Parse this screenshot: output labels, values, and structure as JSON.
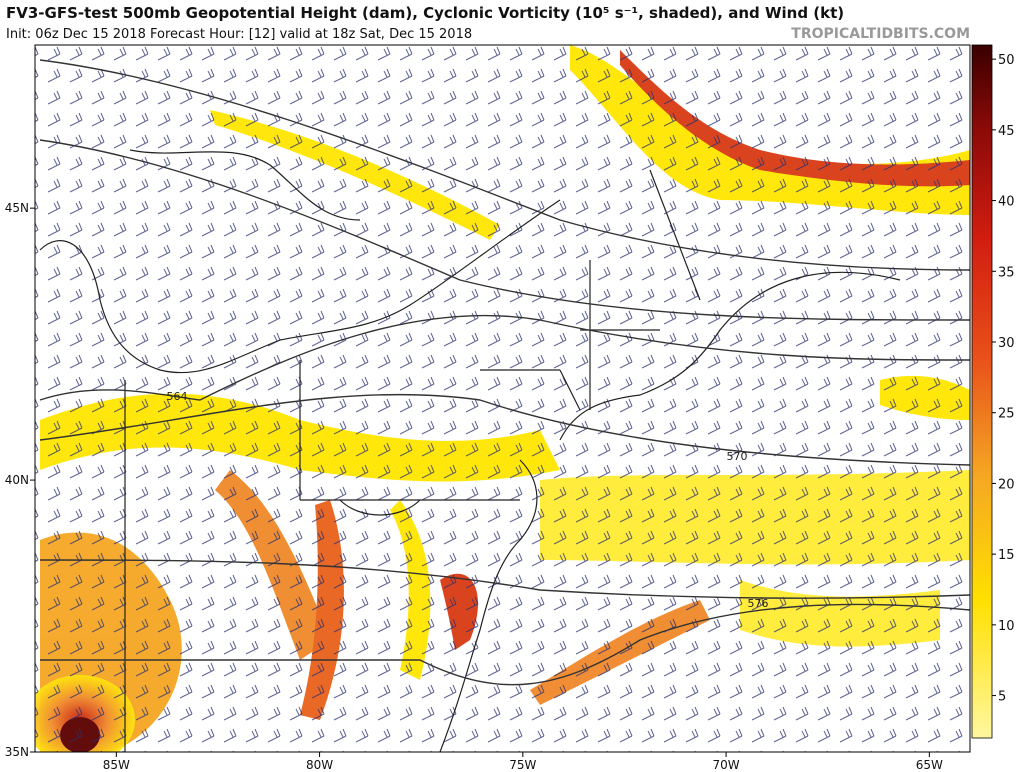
{
  "header": {
    "title": "FV3-GFS-test 500mb Geopotential Height (dam), Cyclonic Vorticity (10⁵ s⁻¹, shaded), and Wind (kt)",
    "subtitle": "Init: 06z Dec 15 2018   Forecast Hour: [12]   valid at 18z Sat, Dec 15 2018",
    "watermark": "TROPICALTIDBITS.COM"
  },
  "map": {
    "latlim": [
      35,
      48
    ],
    "lonlim": [
      -87,
      -64
    ],
    "latticks": [
      {
        "value": 45,
        "label": "45N"
      },
      {
        "value": 40,
        "label": "40N"
      },
      {
        "value": 35,
        "label": "35N"
      }
    ],
    "lonticks": [
      {
        "value": -85,
        "label": "85W"
      },
      {
        "value": -80,
        "label": "80W"
      },
      {
        "value": -75,
        "label": "75W"
      },
      {
        "value": -70,
        "label": "70W"
      },
      {
        "value": -65,
        "label": "65W"
      }
    ],
    "contour_labels": [
      "564",
      "570",
      "576"
    ]
  },
  "colorbar": {
    "range": [
      2,
      51
    ],
    "ticks": [
      5,
      10,
      15,
      20,
      25,
      30,
      35,
      40,
      45,
      50
    ]
  }
}
